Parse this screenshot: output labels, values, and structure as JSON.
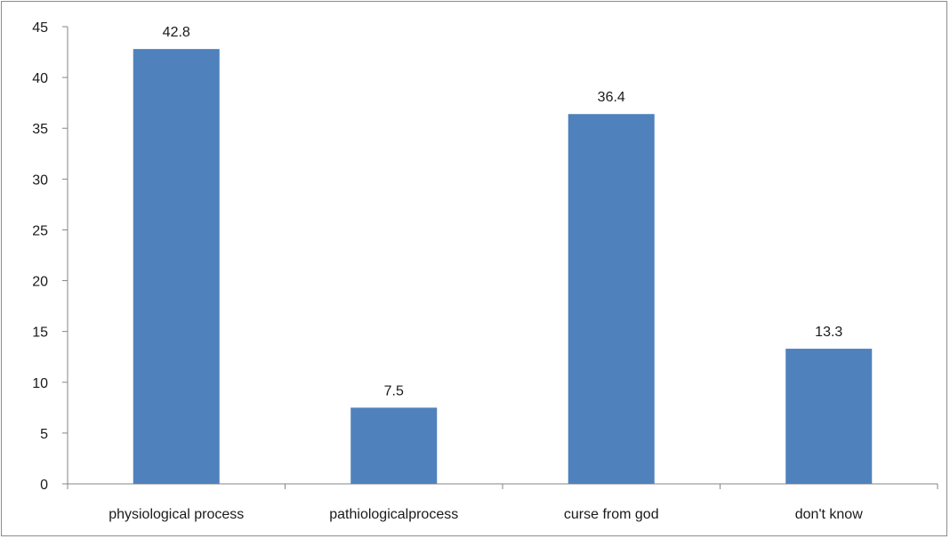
{
  "chart_data": {
    "type": "bar",
    "title": "",
    "xlabel": "",
    "ylabel": "",
    "categories": [
      "physiological process",
      "pathiologicalprocess",
      "curse from god",
      "don't know"
    ],
    "values": [
      42.8,
      7.5,
      36.4,
      13.3
    ],
    "data_labels": [
      "42.8",
      "7.5",
      "36.4",
      "13.3"
    ],
    "ylim": [
      0,
      45
    ],
    "yticks": [
      0,
      5,
      10,
      15,
      20,
      25,
      30,
      35,
      40,
      45
    ],
    "ytick_labels": [
      "0",
      "5",
      "10",
      "15",
      "20",
      "25",
      "30",
      "35",
      "40",
      "45"
    ],
    "grid": false,
    "legend": "none",
    "bar_color": "#4F81BD",
    "axis_color": "#868686"
  }
}
